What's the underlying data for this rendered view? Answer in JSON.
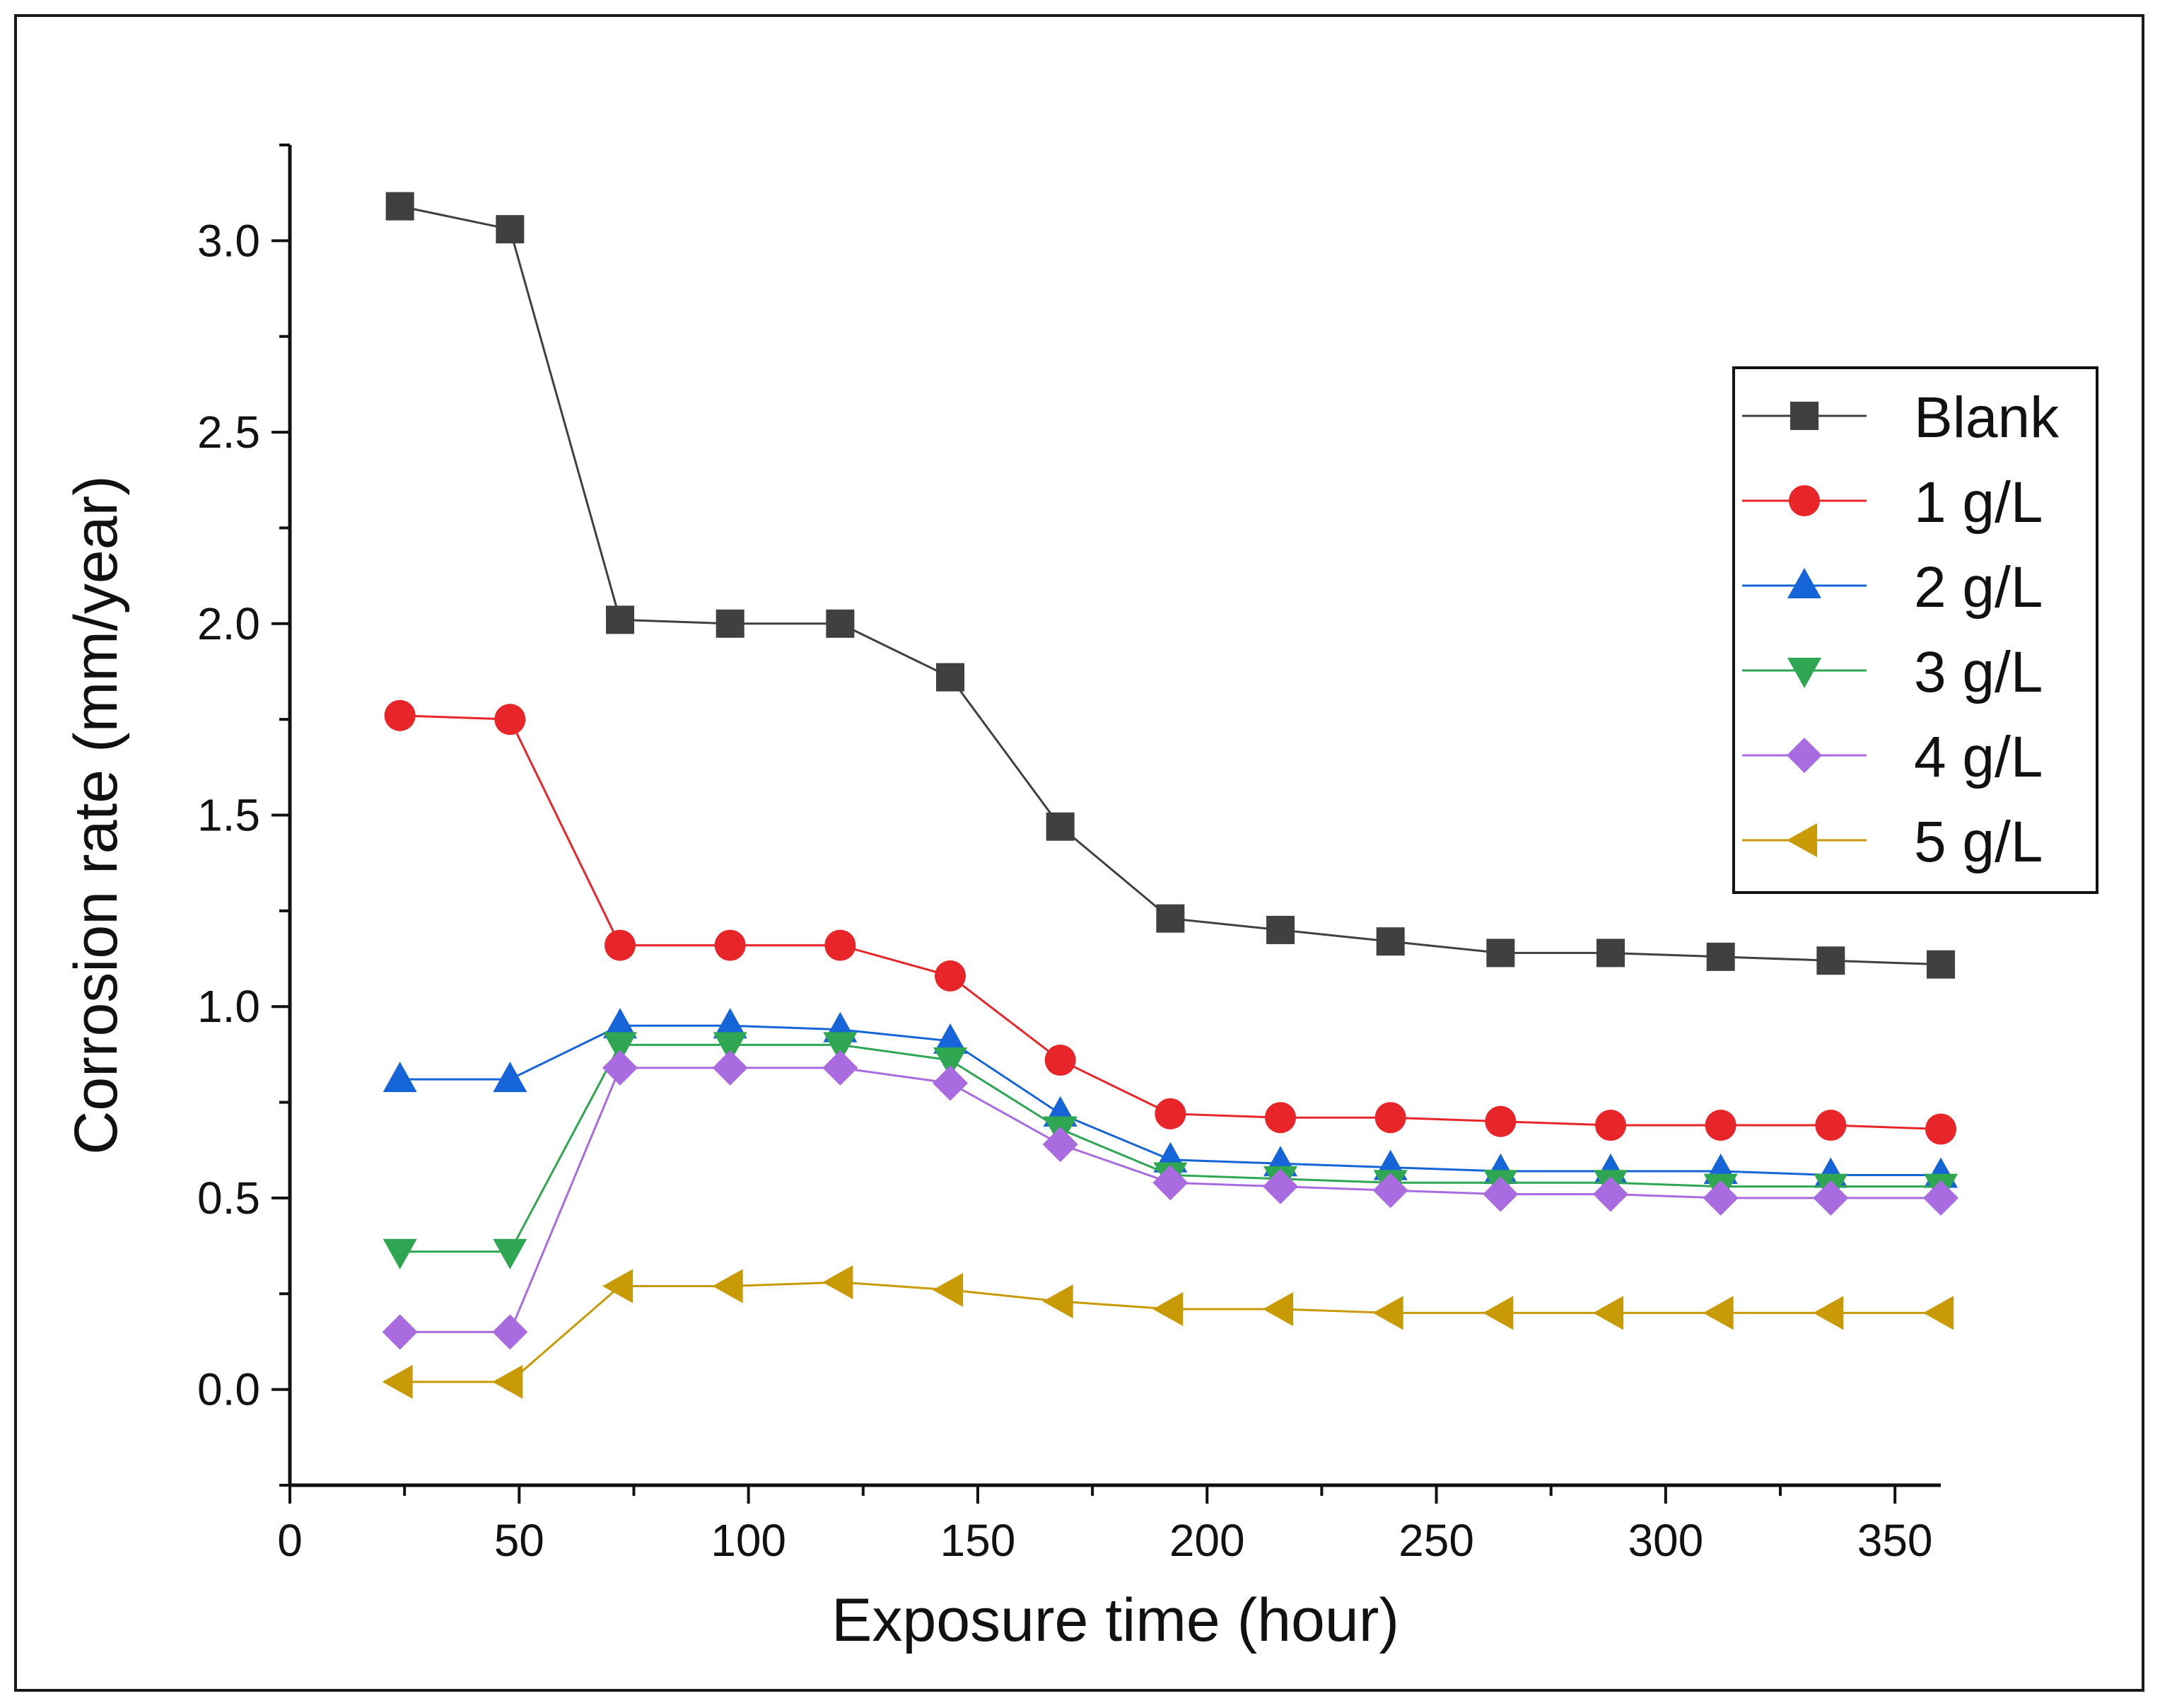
{
  "chart_data": {
    "type": "line",
    "title": "",
    "xlabel": "Exposure time (hour)",
    "ylabel": "Corrosion rate (mm/year)",
    "xlim": [
      0,
      360
    ],
    "ylim": [
      -0.25,
      3.25
    ],
    "x_ticks": [
      0,
      50,
      100,
      150,
      200,
      250,
      300,
      350
    ],
    "x_tick_labels": [
      "0",
      "50",
      "100",
      "150",
      "200",
      "250",
      "300",
      "350"
    ],
    "y_ticks": [
      0.0,
      0.5,
      1.0,
      1.5,
      2.0,
      2.5,
      3.0
    ],
    "y_tick_labels": [
      "0.0",
      "0.5",
      "1.0",
      "1.5",
      "2.0",
      "2.5",
      "3.0"
    ],
    "grid": false,
    "legend_position": "right",
    "x": [
      24,
      48,
      72,
      96,
      120,
      144,
      168,
      192,
      216,
      240,
      264,
      288,
      312,
      336,
      360
    ],
    "series": [
      {
        "name": "Blank",
        "color": "#404040",
        "marker": "square",
        "values": [
          3.09,
          3.03,
          2.01,
          2.0,
          2.0,
          1.86,
          1.47,
          1.23,
          1.2,
          1.17,
          1.14,
          1.14,
          1.13,
          1.12,
          1.11
        ]
      },
      {
        "name": "1 g/L",
        "color": "#e8262a",
        "marker": "circle",
        "values": [
          1.76,
          1.75,
          1.16,
          1.16,
          1.16,
          1.08,
          0.86,
          0.72,
          0.71,
          0.71,
          0.7,
          0.69,
          0.69,
          0.69,
          0.68
        ]
      },
      {
        "name": "2 g/L",
        "color": "#1565d8",
        "marker": "triangle-up",
        "values": [
          0.81,
          0.81,
          0.95,
          0.95,
          0.94,
          0.91,
          0.72,
          0.6,
          0.59,
          0.58,
          0.57,
          0.57,
          0.57,
          0.56,
          0.56
        ]
      },
      {
        "name": "3 g/L",
        "color": "#2ea652",
        "marker": "triangle-down",
        "values": [
          0.36,
          0.36,
          0.9,
          0.9,
          0.9,
          0.86,
          0.68,
          0.56,
          0.55,
          0.54,
          0.54,
          0.54,
          0.53,
          0.53,
          0.53
        ]
      },
      {
        "name": "4 g/L",
        "color": "#a96be0",
        "marker": "diamond",
        "values": [
          0.15,
          0.15,
          0.84,
          0.84,
          0.84,
          0.8,
          0.64,
          0.54,
          0.53,
          0.52,
          0.51,
          0.51,
          0.5,
          0.5,
          0.5
        ]
      },
      {
        "name": "5 g/L",
        "color": "#c89a06",
        "marker": "triangle-left",
        "values": [
          0.02,
          0.02,
          0.27,
          0.27,
          0.28,
          0.26,
          0.23,
          0.21,
          0.21,
          0.2,
          0.2,
          0.2,
          0.2,
          0.2,
          0.2
        ]
      }
    ]
  }
}
